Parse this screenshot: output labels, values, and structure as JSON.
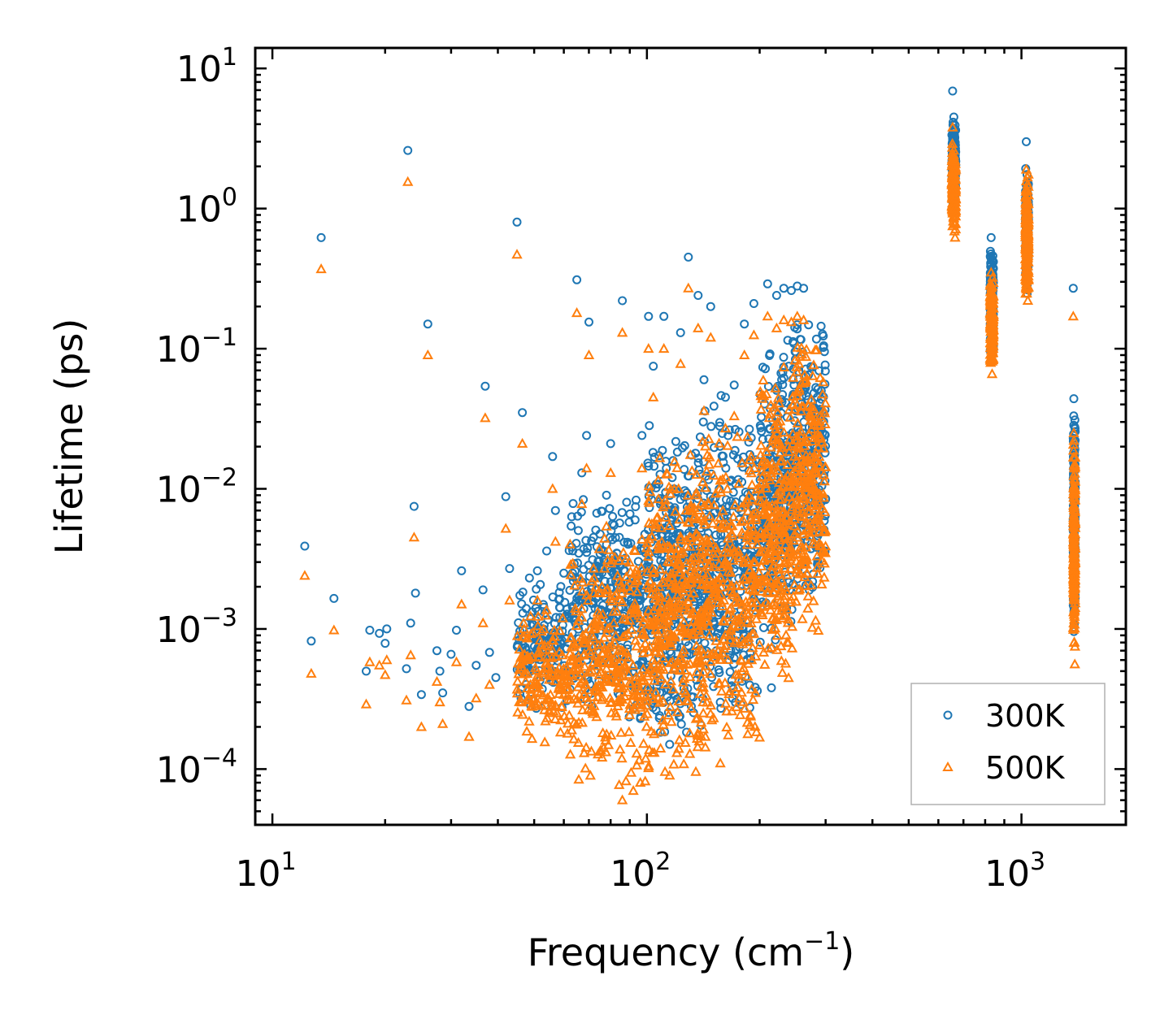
{
  "chart_data": {
    "type": "scatter",
    "title": "",
    "xlabel": "Frequency (cm",
    "xlabel_sup": "−1",
    "xlabel_tail": ")",
    "ylabel": "Lifetime (ps)",
    "xscale": "log",
    "yscale": "log",
    "xlim": [
      9.0,
      1900
    ],
    "ylim": [
      4e-05,
      14
    ],
    "x_ticks": [
      {
        "value": 10,
        "base": "10",
        "exp": "1"
      },
      {
        "value": 100,
        "base": "10",
        "exp": "2"
      },
      {
        "value": 1000,
        "base": "10",
        "exp": "3"
      }
    ],
    "y_ticks": [
      {
        "value": 10,
        "base": "10",
        "exp": "1"
      },
      {
        "value": 1,
        "base": "10",
        "exp": "0"
      },
      {
        "value": 0.1,
        "base": "10",
        "exp": "−1"
      },
      {
        "value": 0.01,
        "base": "10",
        "exp": "−2"
      },
      {
        "value": 0.001,
        "base": "10",
        "exp": "−3"
      },
      {
        "value": 0.0001,
        "base": "10",
        "exp": "−4"
      }
    ],
    "legend_position": "lower-right",
    "series": [
      {
        "name": "300K",
        "marker": "circle",
        "color": "#1f77b4",
        "points": [
          [
            12.2,
            0.0039
          ],
          [
            12.7,
            0.00082
          ],
          [
            13.5,
            0.62
          ],
          [
            14.6,
            0.00165
          ],
          [
            17.8,
            0.0005
          ],
          [
            18.2,
            0.00098
          ],
          [
            19.3,
            0.00093
          ],
          [
            20.0,
            0.00079
          ],
          [
            20.2,
            0.001
          ],
          [
            22.8,
            0.00052
          ],
          [
            23.0,
            2.6
          ],
          [
            23.4,
            0.0011
          ],
          [
            23.9,
            0.0075
          ],
          [
            24.1,
            0.0018
          ],
          [
            25.0,
            0.00034
          ],
          [
            26.0,
            0.15
          ],
          [
            27.5,
            0.0007
          ],
          [
            28.0,
            0.0005
          ],
          [
            28.5,
            0.00035
          ],
          [
            30.0,
            0.00066
          ],
          [
            31.0,
            0.00098
          ],
          [
            32.0,
            0.0026
          ],
          [
            33.5,
            0.00028
          ],
          [
            35.0,
            0.00055
          ],
          [
            36.5,
            0.0019
          ],
          [
            37.0,
            0.054
          ],
          [
            38.0,
            0.00068
          ],
          [
            39.5,
            0.00045
          ],
          [
            42.0,
            0.0088
          ],
          [
            43.0,
            0.0027
          ],
          [
            45.0,
            0.8
          ],
          [
            46.5,
            0.035
          ],
          [
            48.0,
            0.00055
          ],
          [
            51.0,
            0.0026
          ],
          [
            54.0,
            0.0036
          ],
          [
            56.0,
            0.017
          ],
          [
            57.0,
            0.007
          ],
          [
            60.0,
            0.0025
          ],
          [
            62.0,
            0.0012
          ],
          [
            65.0,
            0.31
          ],
          [
            67.0,
            0.013
          ],
          [
            69.0,
            0.024
          ],
          [
            70.0,
            0.155
          ],
          [
            72.0,
            0.0045
          ],
          [
            78.0,
            0.009
          ],
          [
            80.0,
            0.021
          ],
          [
            83.0,
            0.0012
          ],
          [
            86.0,
            0.22
          ],
          [
            89.0,
            0.0009
          ],
          [
            93.0,
            0.006
          ],
          [
            97.0,
            0.024
          ],
          [
            101.0,
            0.17
          ],
          [
            104.0,
            0.075
          ],
          [
            107.0,
            0.00042
          ],
          [
            111.0,
            0.17
          ],
          [
            115.0,
            0.00015
          ],
          [
            118.0,
            0.0006
          ],
          [
            123.0,
            0.13
          ],
          [
            129.0,
            0.45
          ],
          [
            133.0,
            0.0055
          ],
          [
            137.0,
            0.24
          ],
          [
            142.0,
            0.06
          ],
          [
            148.0,
            0.2
          ],
          [
            152.0,
            0.0014
          ],
          [
            157.0,
            0.0003
          ],
          [
            162.0,
            0.045
          ],
          [
            171.0,
            0.055
          ],
          [
            182.0,
            0.15
          ],
          [
            193.0,
            0.21
          ],
          [
            200.0,
            0.0035
          ],
          [
            210.0,
            0.29
          ],
          [
            215.0,
            0.00038
          ],
          [
            222.0,
            0.24
          ],
          [
            232.0,
            0.27
          ],
          [
            243.0,
            0.26
          ],
          [
            252.0,
            0.28
          ],
          [
            262.0,
            0.27
          ],
          [
            270.0,
            0.065
          ],
          [
            280.0,
            0.038
          ],
          [
            290.0,
            0.0065
          ],
          [
            300.0,
            0.0085
          ],
          [
            655.0,
            6.9
          ],
          [
            660.0,
            4.5
          ],
          [
            665.0,
            2.2
          ],
          [
            830.0,
            0.62
          ],
          [
            835.0,
            0.35
          ],
          [
            840.0,
            0.18
          ],
          [
            1030.0,
            3.0
          ],
          [
            1035.0,
            1.5
          ],
          [
            1040.0,
            0.45
          ],
          [
            1375.0,
            0.27
          ],
          [
            1380.0,
            0.044
          ],
          [
            1385.0,
            0.012
          ],
          [
            1388.0,
            0.0015
          ]
        ],
        "bands": [
          {
            "x": [
              45,
              62
            ],
            "y": [
              0.00025,
              0.0025
            ],
            "n": 160
          },
          {
            "x": [
              62,
              100
            ],
            "y": [
              0.0002,
              0.01
            ],
            "n": 340
          },
          {
            "x": [
              100,
              140
            ],
            "y": [
              0.00015,
              0.03
            ],
            "n": 360
          },
          {
            "x": [
              140,
              200
            ],
            "y": [
              0.0002,
              0.05
            ],
            "n": 320
          },
          {
            "x": [
              200,
              245
            ],
            "y": [
              0.0006,
              0.12
            ],
            "n": 260
          },
          {
            "x": [
              245,
              300
            ],
            "y": [
              0.0015,
              0.2
            ],
            "n": 260
          },
          {
            "x": [
              652,
              668
            ],
            "y": [
              1.1,
              4.3
            ],
            "n": 170
          },
          {
            "x": [
              825,
              842
            ],
            "y": [
              0.08,
              0.55
            ],
            "n": 150
          },
          {
            "x": [
              1025,
              1045
            ],
            "y": [
              0.22,
              2.5
            ],
            "n": 170
          },
          {
            "x": [
              1375,
              1392
            ],
            "y": [
              0.0009,
              0.04
            ],
            "n": 180
          }
        ]
      },
      {
        "name": "500K",
        "marker": "triangle",
        "color": "#ff7f0e",
        "points": [
          [
            12.2,
            0.0024
          ],
          [
            12.7,
            0.00048
          ],
          [
            13.5,
            0.37
          ],
          [
            14.6,
            0.00098
          ],
          [
            17.8,
            0.00029
          ],
          [
            18.2,
            0.00058
          ],
          [
            19.3,
            0.00055
          ],
          [
            20.0,
            0.00047
          ],
          [
            20.2,
            0.0006
          ],
          [
            22.8,
            0.00031
          ],
          [
            23.0,
            1.55
          ],
          [
            23.4,
            0.00065
          ],
          [
            23.9,
            0.0045
          ],
          [
            25.0,
            0.0002
          ],
          [
            26.0,
            0.09
          ],
          [
            27.5,
            0.00042
          ],
          [
            28.0,
            0.0003
          ],
          [
            28.5,
            0.00021
          ],
          [
            31.0,
            0.00058
          ],
          [
            32.0,
            0.0015
          ],
          [
            33.5,
            0.00017
          ],
          [
            35.0,
            0.00032
          ],
          [
            36.5,
            0.0011
          ],
          [
            37.0,
            0.032
          ],
          [
            38.0,
            0.0004
          ],
          [
            42.0,
            0.0052
          ],
          [
            43.0,
            0.0016
          ],
          [
            45.0,
            0.47
          ],
          [
            46.5,
            0.021
          ],
          [
            51.0,
            0.0016
          ],
          [
            56.0,
            0.01
          ],
          [
            57.0,
            0.0042
          ],
          [
            65.0,
            0.18
          ],
          [
            67.0,
            0.0078
          ],
          [
            69.0,
            0.014
          ],
          [
            70.0,
            0.09
          ],
          [
            72.0,
            0.0027
          ],
          [
            78.0,
            0.0054
          ],
          [
            80.0,
            0.013
          ],
          [
            86.0,
            0.13
          ],
          [
            93.0,
            0.0036
          ],
          [
            97.0,
            0.014
          ],
          [
            101.0,
            0.1
          ],
          [
            104.0,
            0.045
          ],
          [
            111.0,
            0.1
          ],
          [
            115.0,
            9e-05
          ],
          [
            123.0,
            0.078
          ],
          [
            129.0,
            0.27
          ],
          [
            137.0,
            0.14
          ],
          [
            142.0,
            0.036
          ],
          [
            148.0,
            0.12
          ],
          [
            157.0,
            0.00011
          ],
          [
            162.0,
            0.027
          ],
          [
            171.0,
            0.033
          ],
          [
            182.0,
            0.09
          ],
          [
            193.0,
            0.125
          ],
          [
            210.0,
            0.17
          ],
          [
            222.0,
            0.14
          ],
          [
            232.0,
            0.16
          ],
          [
            243.0,
            0.155
          ],
          [
            252.0,
            0.17
          ],
          [
            262.0,
            0.16
          ],
          [
            270.0,
            0.039
          ],
          [
            280.0,
            0.023
          ],
          [
            290.0,
            0.0039
          ],
          [
            300.0,
            0.005
          ],
          [
            86.0,
            6e-05
          ],
          [
            92.0,
            7e-05
          ],
          [
            96.0,
            8e-05
          ],
          [
            655.0,
            3.8
          ],
          [
            660.0,
            2.6
          ],
          [
            665.0,
            0.62
          ],
          [
            830.0,
            0.35
          ],
          [
            835.0,
            0.066
          ],
          [
            840.0,
            0.1
          ],
          [
            1030.0,
            1.9
          ],
          [
            1035.0,
            0.9
          ],
          [
            1040.0,
            0.22
          ],
          [
            1375.0,
            0.17
          ],
          [
            1380.0,
            0.025
          ],
          [
            1385.0,
            0.007
          ],
          [
            1388.0,
            0.00056
          ]
        ],
        "bands": [
          {
            "x": [
              45,
              62
            ],
            "y": [
              0.00014,
              0.0015
            ],
            "n": 160
          },
          {
            "x": [
              62,
              100
            ],
            "y": [
              7e-05,
              0.006
            ],
            "n": 340
          },
          {
            "x": [
              100,
              140
            ],
            "y": [
              9e-05,
              0.02
            ],
            "n": 360
          },
          {
            "x": [
              140,
              200
            ],
            "y": [
              0.00011,
              0.03
            ],
            "n": 320
          },
          {
            "x": [
              200,
              245
            ],
            "y": [
              0.00035,
              0.09
            ],
            "n": 260
          },
          {
            "x": [
              245,
              300
            ],
            "y": [
              0.0009,
              0.14
            ],
            "n": 260
          },
          {
            "x": [
              652,
              668
            ],
            "y": [
              0.65,
              3.0
            ],
            "n": 170
          },
          {
            "x": [
              825,
              842
            ],
            "y": [
              0.065,
              0.35
            ],
            "n": 150
          },
          {
            "x": [
              1025,
              1045
            ],
            "y": [
              0.21,
              1.9
            ],
            "n": 170
          },
          {
            "x": [
              1375,
              1392
            ],
            "y": [
              0.0007,
              0.025
            ],
            "n": 180
          }
        ]
      }
    ]
  }
}
